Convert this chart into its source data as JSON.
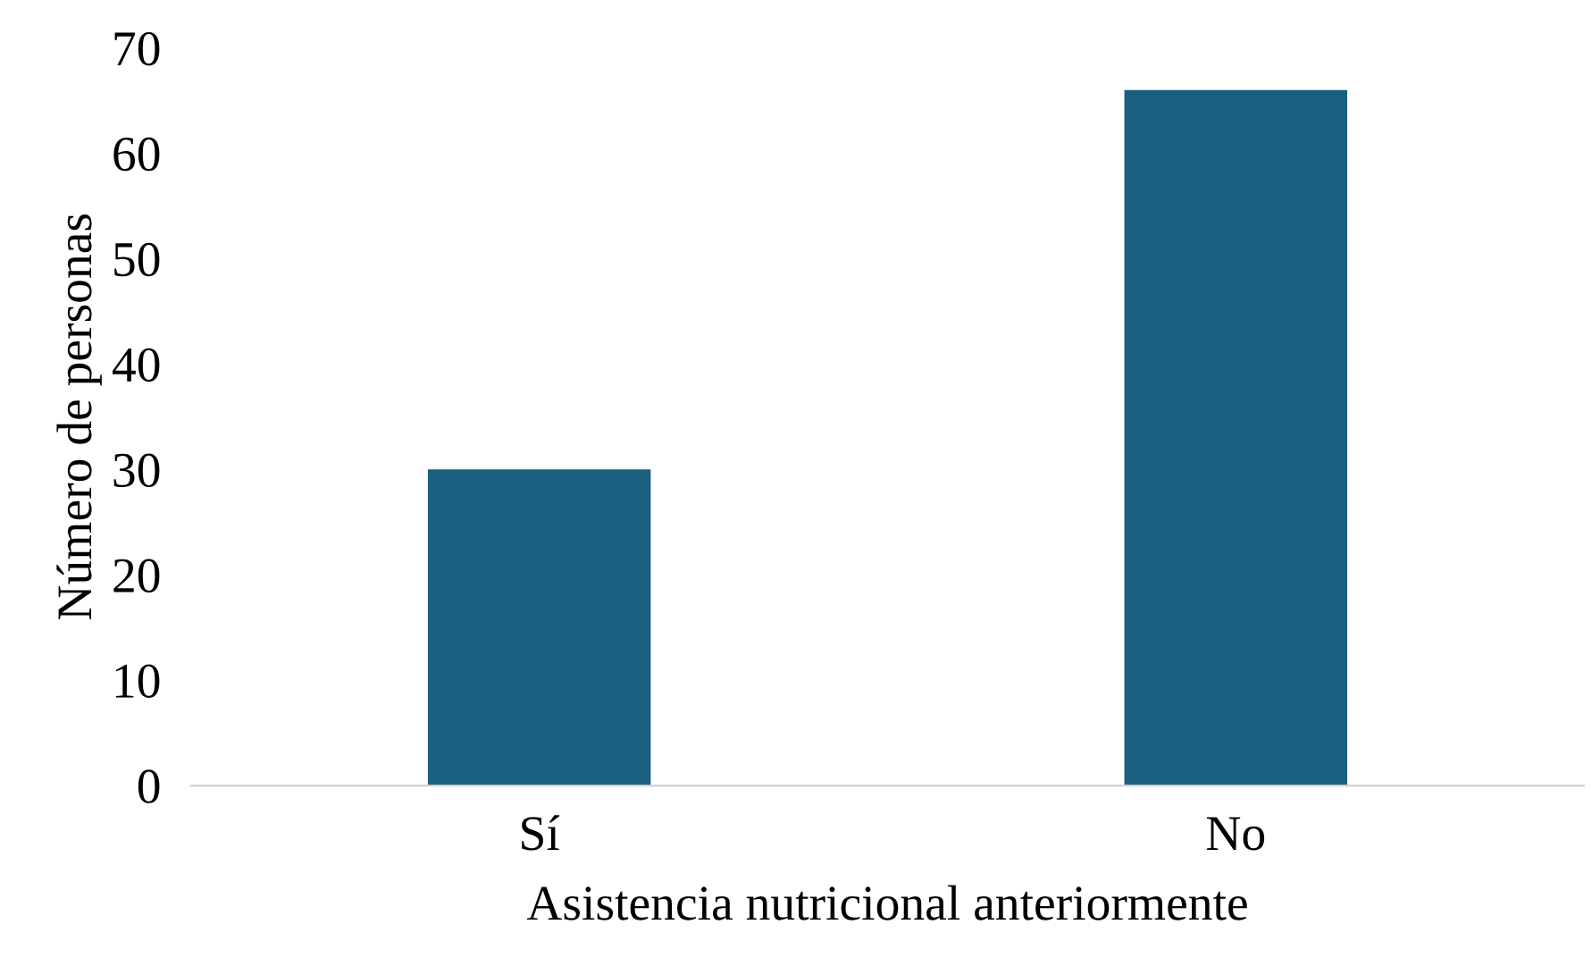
{
  "chart_data": {
    "type": "bar",
    "xlabel": "Asistencia nutricional anteriormente",
    "ylabel": "Número de personas",
    "categories": [
      "Sí",
      "No"
    ],
    "values": [
      30,
      66
    ],
    "color": "#1a5e80",
    "ylim": [
      0,
      70
    ],
    "yticks": [
      0,
      10,
      20,
      30,
      40,
      50,
      60,
      70
    ],
    "grid": false
  }
}
